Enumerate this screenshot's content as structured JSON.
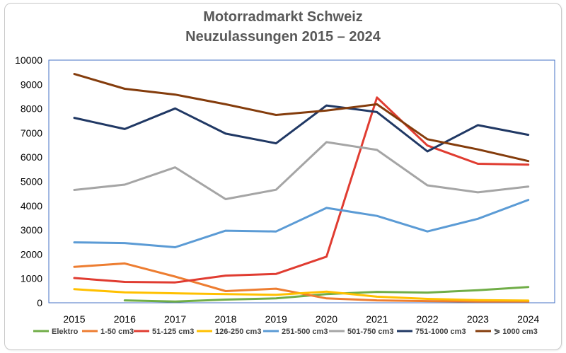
{
  "chart_data": {
    "type": "line",
    "title": "Motorradmarkt Schweiz",
    "subtitle": "Neuzulassungen 2015 – 2024",
    "x": [
      2015,
      2016,
      2017,
      2018,
      2019,
      2020,
      2021,
      2022,
      2023,
      2024
    ],
    "ylim": [
      0,
      10000
    ],
    "yticks": [
      0,
      1000,
      2000,
      3000,
      4000,
      5000,
      6000,
      7000,
      8000,
      9000,
      10000
    ],
    "grid": false,
    "legend": "bottom",
    "series": [
      {
        "name": "Elektro",
        "color": "#70ad47",
        "values": [
          null,
          100,
          50,
          130,
          180,
          360,
          450,
          420,
          520,
          650
        ]
      },
      {
        "name": "1-50 cm3",
        "color": "#ed7d31",
        "values": [
          1480,
          1620,
          1080,
          480,
          580,
          180,
          100,
          70,
          50,
          50
        ]
      },
      {
        "name": "51-125 cm3",
        "color": "#e03c31",
        "values": [
          1020,
          860,
          840,
          1120,
          1190,
          1900,
          8460,
          6480,
          5730,
          5690
        ]
      },
      {
        "name": "126-250 cm3",
        "color": "#ffc000",
        "values": [
          560,
          430,
          390,
          360,
          330,
          460,
          250,
          160,
          110,
          90
        ]
      },
      {
        "name": "251-500 cm3",
        "color": "#5b9bd5",
        "values": [
          2490,
          2460,
          2290,
          2970,
          2940,
          3910,
          3580,
          2940,
          3460,
          4240
        ]
      },
      {
        "name": "501-750 cm3",
        "color": "#a5a5a5",
        "values": [
          4650,
          4870,
          5580,
          4270,
          4660,
          6620,
          6300,
          4840,
          4550,
          4790
        ]
      },
      {
        "name": "751-1000 cm3",
        "color": "#203864",
        "values": [
          7620,
          7160,
          8010,
          6970,
          6570,
          8130,
          7860,
          6240,
          7320,
          6920
        ]
      },
      {
        "name": "⪖ 1000 cm3",
        "color": "#843c0c",
        "values": [
          9430,
          8820,
          8580,
          8180,
          7740,
          7920,
          8180,
          6740,
          6320,
          5840
        ]
      }
    ]
  }
}
